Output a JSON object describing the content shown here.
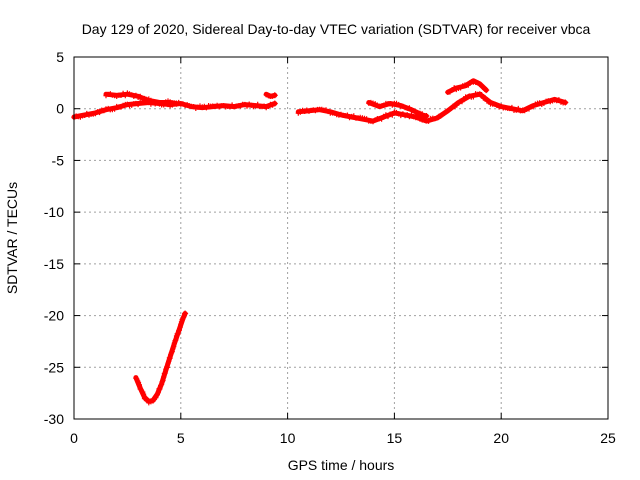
{
  "chart_data": {
    "type": "scatter",
    "title": "Day 129 of 2020, Sidereal Day-to-day VTEC variation (SDTVAR) for receiver vbca",
    "xlabel": "GPS time / hours",
    "ylabel": "SDTVAR / TECUs",
    "xlim": [
      0,
      25
    ],
    "ylim": [
      -30,
      5
    ],
    "xticks": [
      0,
      5,
      10,
      15,
      20,
      25
    ],
    "yticks": [
      5,
      0,
      -5,
      -10,
      -15,
      -20,
      -25,
      -30
    ],
    "grid": true,
    "color": "#ff0000",
    "series": [
      {
        "name": "SDTVAR segment 0.0-9.4 h",
        "x": [
          0.0,
          0.5,
          1.0,
          1.5,
          2.0,
          2.5,
          3.0,
          3.5,
          4.0,
          4.5,
          5.0,
          5.5,
          6.0,
          6.5,
          7.0,
          7.5,
          8.0,
          8.5,
          9.0,
          9.4
        ],
        "y": [
          -0.8,
          -0.6,
          -0.4,
          -0.1,
          0.1,
          0.4,
          0.5,
          0.6,
          0.5,
          0.4,
          0.5,
          0.2,
          0.1,
          0.2,
          0.3,
          0.2,
          0.4,
          0.3,
          0.2,
          0.5
        ]
      },
      {
        "name": "SDTVAR segment 1.5-4.8 h (upper)",
        "x": [
          1.5,
          2.0,
          2.5,
          3.0,
          3.5,
          4.0,
          4.5,
          4.8
        ],
        "y": [
          1.4,
          1.3,
          1.4,
          1.2,
          0.8,
          0.6,
          0.6,
          0.5
        ]
      },
      {
        "name": "SDTVAR segment 9.0-9.4 h",
        "x": [
          9.0,
          9.2,
          9.4
        ],
        "y": [
          1.4,
          1.2,
          1.3
        ]
      },
      {
        "name": "SDTVAR segment 10.5-23.0 h",
        "x": [
          10.5,
          11.0,
          11.5,
          12.0,
          12.5,
          13.0,
          13.5,
          14.0,
          14.5,
          15.0,
          15.5,
          16.0,
          16.5,
          17.0,
          17.5,
          18.0,
          18.5,
          19.0,
          19.5,
          20.0,
          20.5,
          21.0,
          21.5,
          22.0,
          22.5,
          23.0
        ],
        "y": [
          -0.3,
          -0.2,
          -0.1,
          -0.3,
          -0.6,
          -0.8,
          -1.0,
          -1.2,
          -0.8,
          -0.4,
          -0.6,
          -0.8,
          -1.2,
          -0.9,
          -0.2,
          0.6,
          1.2,
          1.4,
          0.6,
          0.2,
          0.0,
          -0.2,
          0.3,
          0.6,
          0.9,
          0.6
        ]
      },
      {
        "name": "SDTVAR segment 13.8-16.5 h (upper)",
        "x": [
          13.8,
          14.3,
          14.8,
          15.3,
          15.8,
          16.3,
          16.5
        ],
        "y": [
          0.6,
          0.2,
          0.5,
          0.3,
          -0.1,
          -0.6,
          -0.7
        ]
      },
      {
        "name": "SDTVAR segment 17.5-19.3 h (upper)",
        "x": [
          17.5,
          17.9,
          18.3,
          18.7,
          19.0,
          19.3
        ],
        "y": [
          1.6,
          2.0,
          2.2,
          2.7,
          2.4,
          1.8
        ]
      },
      {
        "name": "SDTVAR segment 2.9-5.2 h (dip)",
        "x": [
          2.9,
          3.1,
          3.3,
          3.5,
          3.7,
          3.9,
          4.1,
          4.3,
          4.5,
          4.7,
          4.9,
          5.1,
          5.2
        ],
        "y": [
          -26.0,
          -27.0,
          -27.9,
          -28.3,
          -28.2,
          -27.6,
          -26.6,
          -25.3,
          -24.0,
          -22.7,
          -21.5,
          -20.3,
          -19.8
        ]
      }
    ]
  }
}
